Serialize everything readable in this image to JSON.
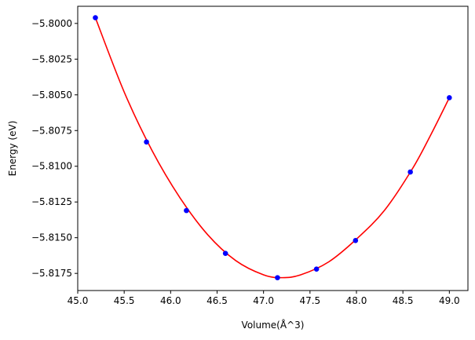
{
  "chart_data": {
    "type": "scatter",
    "title": "",
    "xlabel": "Volume(Å^3)",
    "ylabel": "Energy (eV)",
    "xlim": [
      45.0,
      49.2
    ],
    "ylim": [
      -5.8187,
      -5.7988
    ],
    "x_ticks": [
      45.0,
      45.5,
      46.0,
      46.5,
      47.0,
      47.5,
      48.0,
      48.5,
      49.0
    ],
    "x_tick_labels": [
      "45.0",
      "45.5",
      "46.0",
      "46.5",
      "47.0",
      "47.5",
      "48.0",
      "48.5",
      "49.0"
    ],
    "y_ticks": [
      -5.8,
      -5.8025,
      -5.805,
      -5.8075,
      -5.81,
      -5.8125,
      -5.815,
      -5.8175
    ],
    "y_tick_labels": [
      "−5.8000",
      "−5.8025",
      "−5.8050",
      "−5.8075",
      "−5.8100",
      "−5.8125",
      "−5.8150",
      "−5.8175"
    ],
    "grid": false,
    "legend": false,
    "series": [
      {
        "kind": "scatter",
        "color": "#0000ff",
        "x": [
          45.19,
          45.74,
          46.17,
          46.59,
          47.15,
          47.57,
          47.99,
          48.58,
          49.0
        ],
        "y": [
          -5.7996,
          -5.8083,
          -5.8131,
          -5.8161,
          -5.8178,
          -5.8172,
          -5.8152,
          -5.8104,
          -5.8052
        ]
      },
      {
        "kind": "line",
        "color": "#ff0000",
        "x": [
          45.19,
          45.5,
          45.8,
          46.1,
          46.4,
          46.7,
          47.0,
          47.2,
          47.4,
          47.7,
          48.0,
          48.3,
          48.6,
          48.8,
          49.0
        ],
        "y": [
          -5.7996,
          -5.8048,
          -5.8089,
          -5.8122,
          -5.8148,
          -5.8166,
          -5.8176,
          -5.8178,
          -5.8176,
          -5.8167,
          -5.8151,
          -5.8131,
          -5.8102,
          -5.8078,
          -5.8052
        ]
      }
    ]
  }
}
